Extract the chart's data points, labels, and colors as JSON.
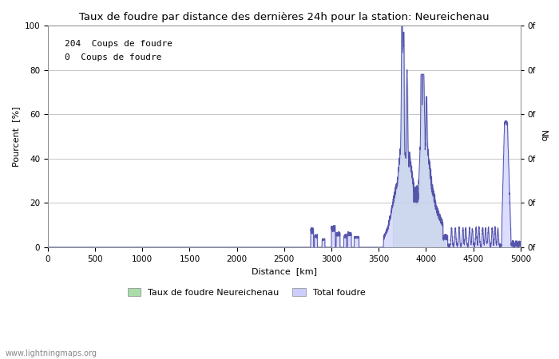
{
  "title": "Taux de foudre par distance des dernières 24h pour la station: Neureichenau",
  "xlabel": "Distance  [km]",
  "ylabel_left": "Pourcent  [%]",
  "ylabel_right": "Nb",
  "annotation_line1": "204  Coups de foudre",
  "annotation_line2": "0  Coups de foudre",
  "legend_label1": "Taux de foudre Neureichenau",
  "legend_label2": "Total foudre",
  "watermark": "www.lightningmaps.org",
  "color_green": "#aaddaa",
  "color_blue_fill": "#ccccff",
  "color_blue_line": "#5555aa",
  "xlim": [
    0,
    5000
  ],
  "ylim": [
    0,
    100
  ],
  "xticks": [
    0,
    500,
    1000,
    1500,
    2000,
    2500,
    3000,
    3500,
    4000,
    4500,
    5000
  ],
  "yticks_left": [
    0,
    20,
    40,
    60,
    80,
    100
  ],
  "figsize": [
    7.0,
    4.5
  ],
  "dpi": 100
}
